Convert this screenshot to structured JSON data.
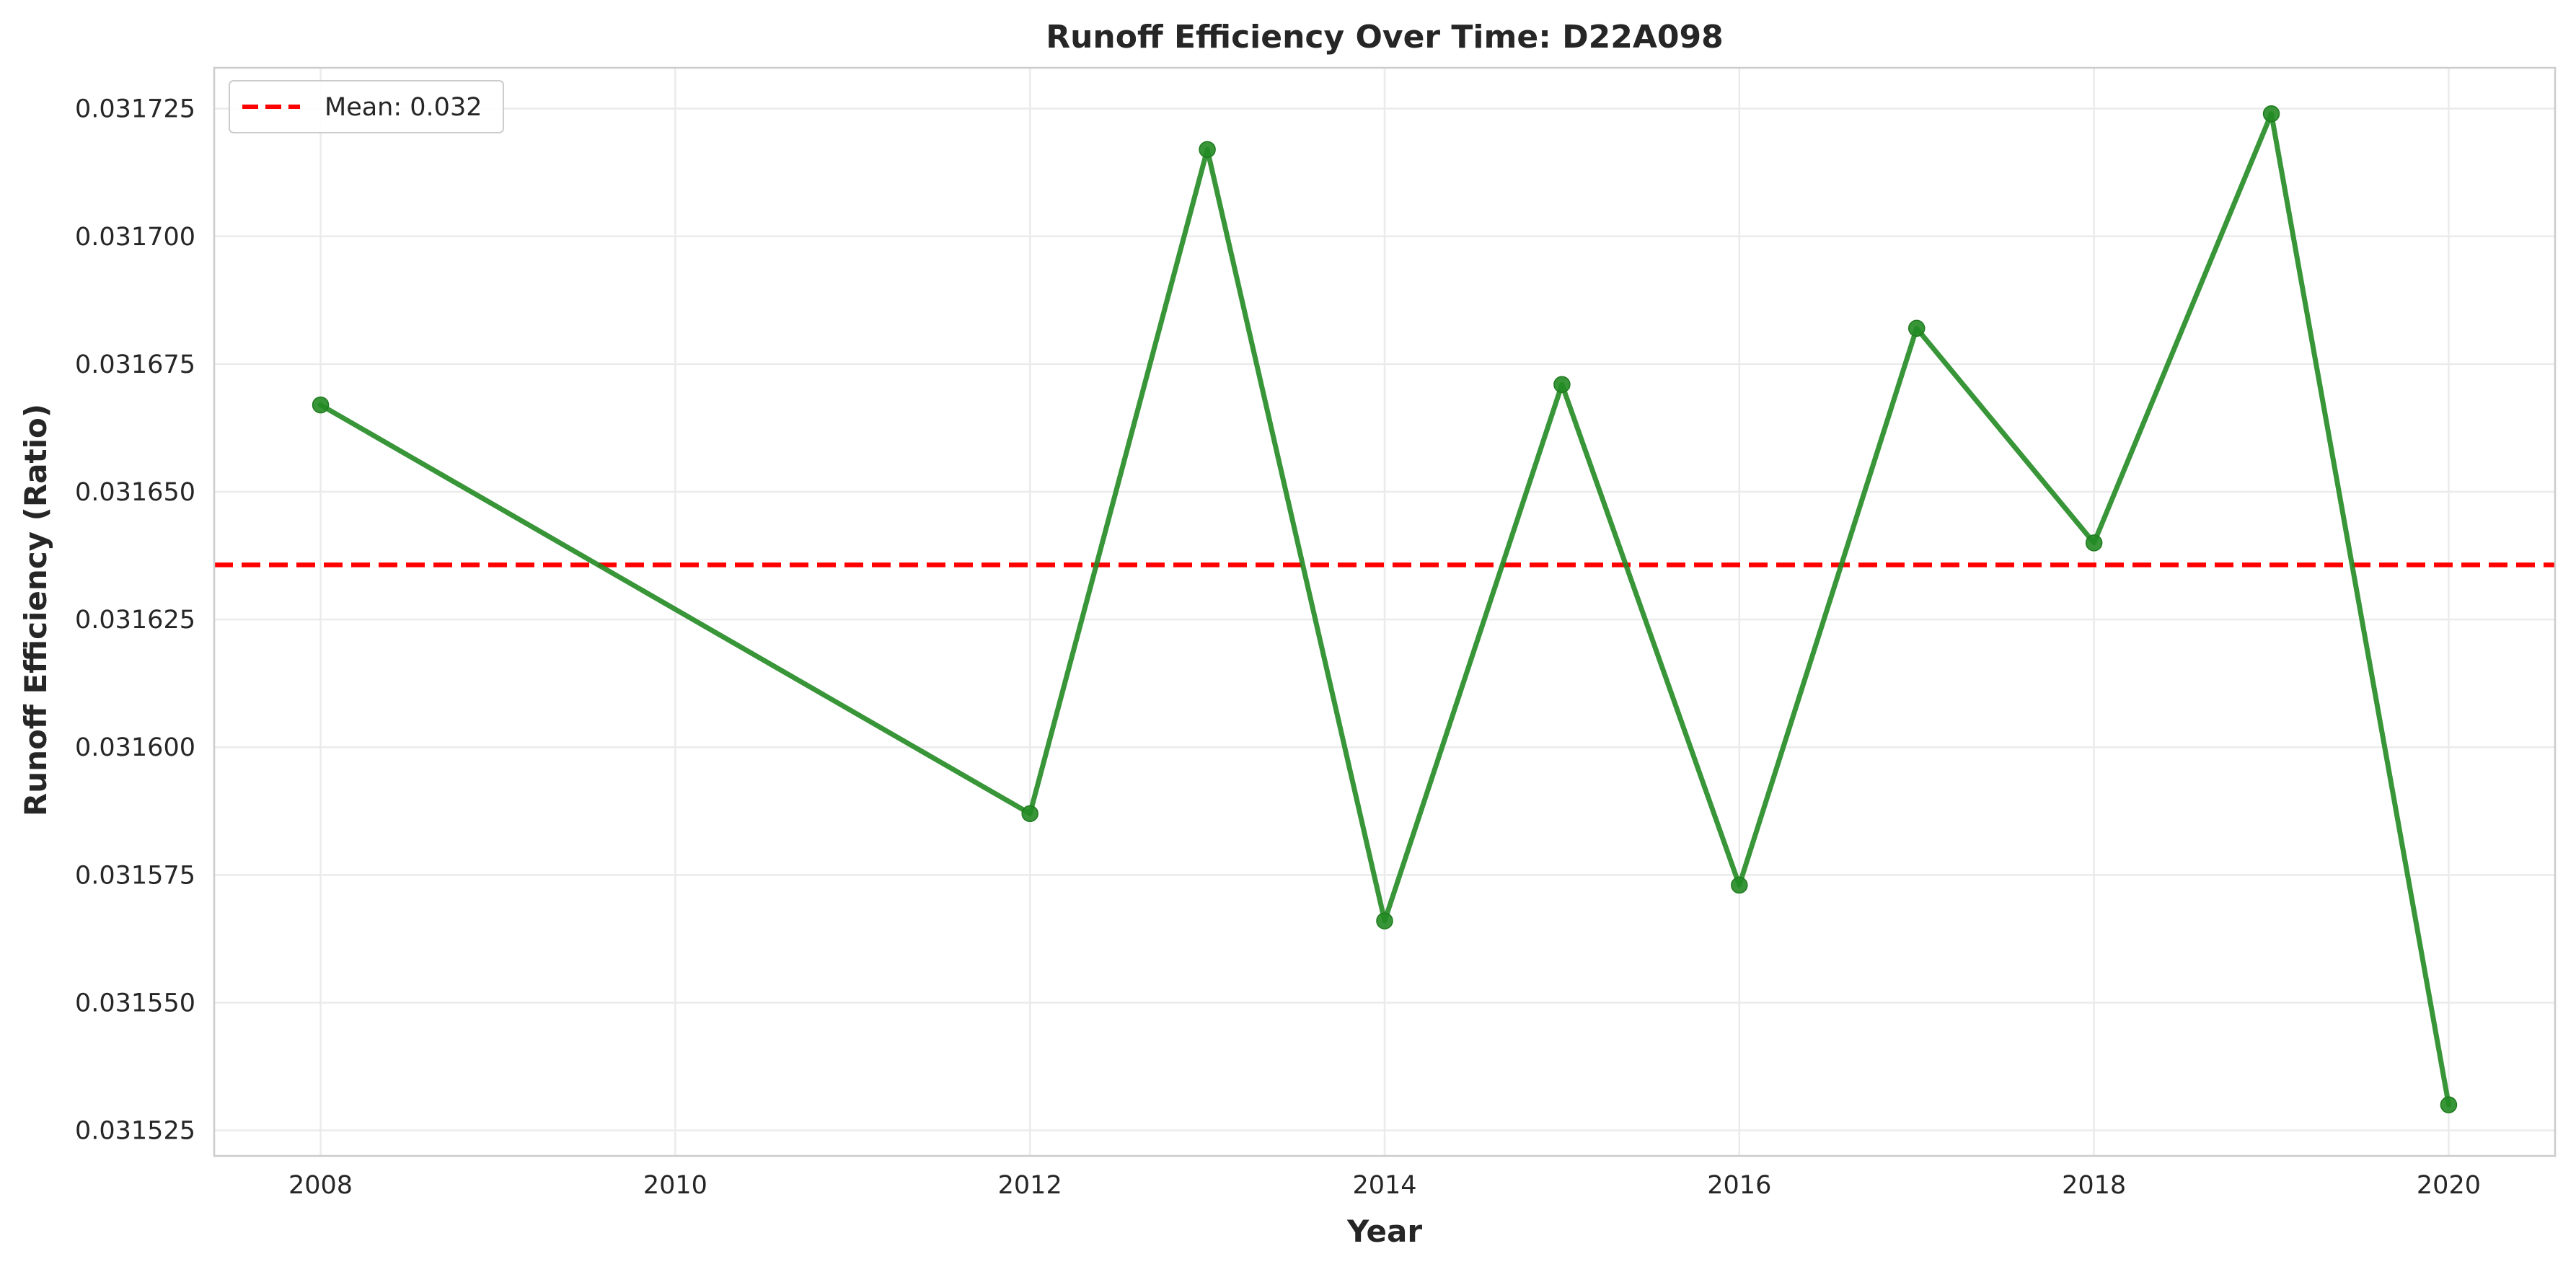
{
  "chart_data": {
    "type": "line",
    "title": "Runoff Efficiency Over Time: D22A098",
    "xlabel": "Year",
    "ylabel": "Runoff Efficiency (Ratio)",
    "xlim": [
      2007.4,
      2020.6
    ],
    "ylim": [
      0.03152,
      0.031733
    ],
    "x_ticks": [
      2008,
      2010,
      2012,
      2014,
      2016,
      2018,
      2020
    ],
    "x_tick_labels": [
      "2008",
      "2010",
      "2012",
      "2014",
      "2016",
      "2018",
      "2020"
    ],
    "y_ticks": [
      0.031525,
      0.03155,
      0.031575,
      0.0316,
      0.031625,
      0.03165,
      0.031675,
      0.0317,
      0.031725
    ],
    "y_tick_labels": [
      "0.031525",
      "0.031550",
      "0.031575",
      "0.031600",
      "0.031625",
      "0.031650",
      "0.031675",
      "0.031700",
      "0.031725"
    ],
    "grid": true,
    "legend_position": "top-left",
    "series": [
      {
        "type": "line",
        "color": "#228B22",
        "marker": "circle",
        "x": [
          2008,
          2012,
          2013,
          2014,
          2015,
          2016,
          2017,
          2018,
          2019,
          2020
        ],
        "values": [
          0.031667,
          0.031587,
          0.031717,
          0.031566,
          0.031671,
          0.031573,
          0.031682,
          0.03164,
          0.031724,
          0.03153
        ]
      }
    ],
    "reference_lines": [
      {
        "name": "Mean: 0.032",
        "orientation": "horizontal",
        "value": 0.0316357,
        "color": "#FF0000",
        "style": "dashed"
      }
    ]
  }
}
